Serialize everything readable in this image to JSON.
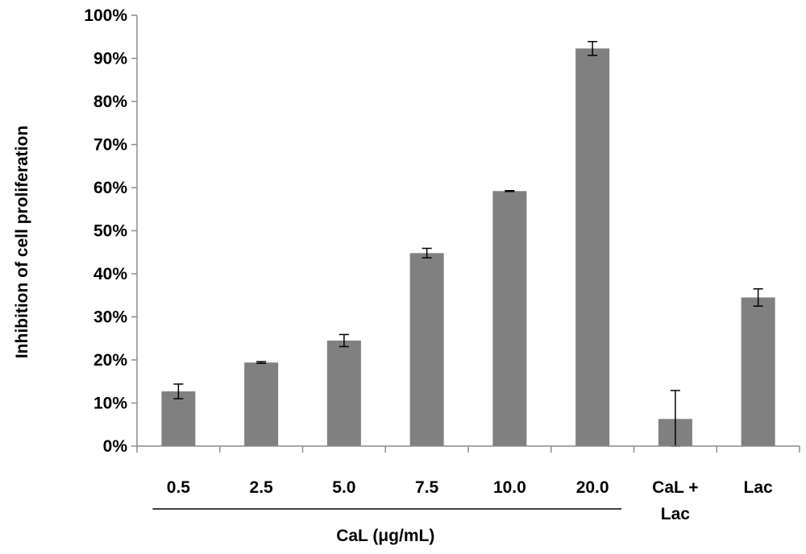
{
  "chart_data": {
    "type": "bar",
    "title": "",
    "ylabel": "Inhibition of cell proliferation",
    "xlabel": "CaL (μg/mL)",
    "group_label": "CaL (μg/mL)",
    "ylim": [
      0,
      100
    ],
    "ytick_values": [
      0,
      10,
      20,
      30,
      40,
      50,
      60,
      70,
      80,
      90,
      100
    ],
    "ytick_labels": [
      "0%",
      "10%",
      "20%",
      "30%",
      "40%",
      "50%",
      "60%",
      "70%",
      "80%",
      "90%",
      "100%"
    ],
    "categories": [
      [
        "0.5"
      ],
      [
        "2.5"
      ],
      [
        "5.0"
      ],
      [
        "7.5"
      ],
      [
        "10.0"
      ],
      [
        "20.0"
      ],
      [
        "CaL +",
        "Lac"
      ],
      [
        "Lac"
      ]
    ],
    "values": [
      12.7,
      19.4,
      24.5,
      44.8,
      59.2,
      92.3,
      6.3,
      34.5
    ],
    "errors": [
      1.7,
      0.2,
      1.4,
      1.1,
      0.1,
      1.6,
      6.6,
      2.0
    ],
    "grouped_count": 6,
    "bar_color": "#808080",
    "axis_color": "#8c8c8c",
    "grid": false,
    "legend": "none"
  }
}
